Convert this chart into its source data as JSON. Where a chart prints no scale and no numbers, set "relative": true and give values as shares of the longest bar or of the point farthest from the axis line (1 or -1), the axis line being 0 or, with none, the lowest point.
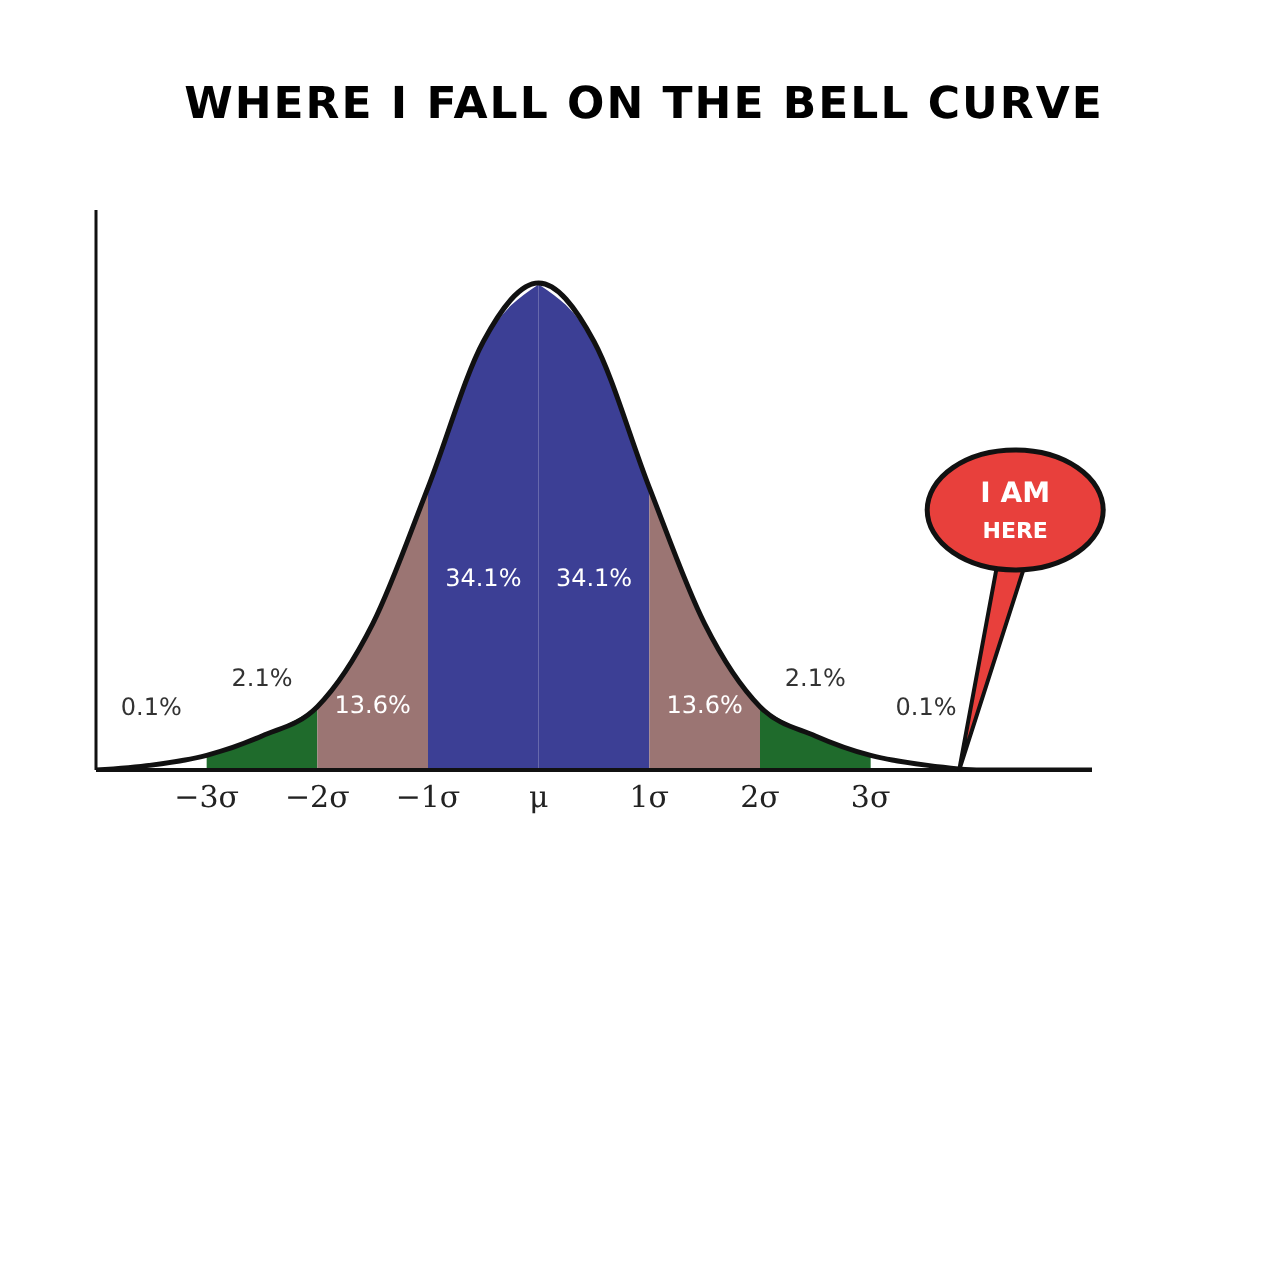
{
  "chart_data": {
    "type": "area",
    "title": "WHERE I FALL ON THE BELL CURVE",
    "relative": true,
    "xlim": [
      -4,
      5
    ],
    "xticks": [
      {
        "value": -3,
        "label": "−3σ"
      },
      {
        "value": -2,
        "label": "−2σ"
      },
      {
        "value": -1,
        "label": "−1σ"
      },
      {
        "value": 0,
        "label": "μ"
      },
      {
        "value": 1,
        "label": "1σ"
      },
      {
        "value": 2,
        "label": "2σ"
      },
      {
        "value": 3,
        "label": "3σ"
      }
    ],
    "tick_labels": "x",
    "grid": false,
    "legend": false,
    "series": [
      {
        "color": "#1f6b2c",
        "x": [
          -3,
          -2.5,
          -2
        ],
        "values": [
          0.03,
          0.07,
          0.13
        ]
      },
      {
        "color": "#9b7573",
        "x": [
          -2,
          -1.5,
          -1
        ],
        "values": [
          0.13,
          0.3,
          0.58
        ]
      },
      {
        "color": "#3c3f95",
        "x": [
          -1,
          -0.5,
          0
        ],
        "values": [
          0.58,
          0.88,
          1
        ]
      },
      {
        "color": "#3c3f95",
        "x": [
          0,
          0.5,
          1
        ],
        "values": [
          1,
          0.88,
          0.58
        ]
      },
      {
        "color": "#9b7573",
        "x": [
          1,
          1.5,
          2
        ],
        "values": [
          0.58,
          0.3,
          0.13
        ]
      },
      {
        "color": "#1f6b2c",
        "x": [
          2,
          2.5,
          3
        ],
        "values": [
          0.13,
          0.07,
          0.03
        ]
      },
      {
        "type": "line",
        "color": "#111111",
        "x": [
          -4,
          -3.5,
          -3,
          -2.5,
          -2,
          -1.5,
          -1,
          -0.5,
          0,
          0.5,
          1,
          1.5,
          2,
          2.5,
          3,
          3.5,
          4,
          4.5,
          5
        ],
        "values": [
          0,
          0.01,
          0.03,
          0.07,
          0.13,
          0.3,
          0.58,
          0.88,
          1,
          0.88,
          0.58,
          0.3,
          0.13,
          0.07,
          0.03,
          0.01,
          0,
          0,
          0
        ]
      }
    ],
    "annotations": [
      "0.1%",
      "2.1%",
      "13.6%",
      "34.1%",
      "34.1%",
      "13.6%",
      "2.1%",
      "0.1%",
      "I AM HERE"
    ]
  }
}
